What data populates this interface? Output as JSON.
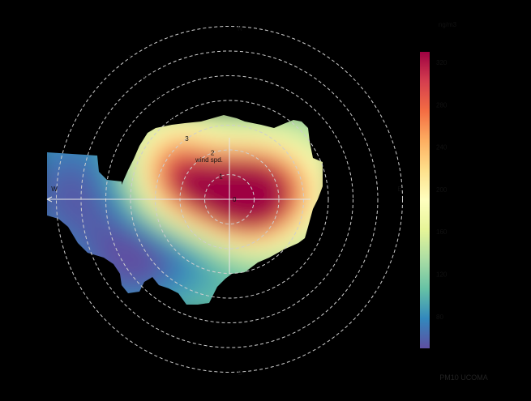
{
  "chart_data": {
    "type": "heatmap",
    "subtype": "polar-plot",
    "center_label": "0",
    "wind_speed_rings": [
      "1",
      "2",
      "3",
      "4",
      "5",
      "6",
      "7"
    ],
    "wind_speed_axis_label": "wind spd.",
    "directions": {
      "north": "N",
      "east": "E",
      "south": "S",
      "west": "W"
    },
    "colorbar": {
      "units_label": "ng/m3",
      "ticks": [
        "80",
        "120",
        "160",
        "200",
        "240",
        "280",
        "320"
      ],
      "range": [
        50,
        330
      ],
      "palette": [
        "#5e4fa2",
        "#3288bd",
        "#66c2a5",
        "#abdda4",
        "#e6f598",
        "#ffffbf",
        "#fee08b",
        "#fdae61",
        "#f46d43",
        "#d53e4f",
        "#9e0142"
      ]
    },
    "caption": "PM10 UCOMA",
    "hotspot": {
      "direction_deg": 95,
      "wind_speed": 0.7,
      "value": 320
    },
    "grid": true
  }
}
